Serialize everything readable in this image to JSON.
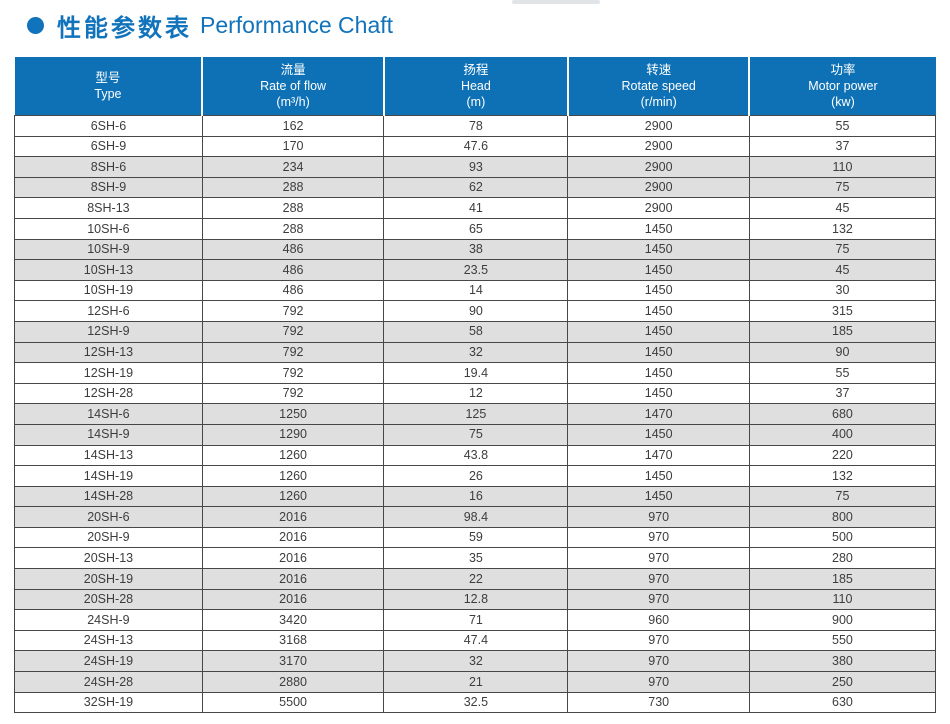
{
  "title": {
    "bullet": "●",
    "cn": "性能参数表",
    "en": "Performance Chaft"
  },
  "colors": {
    "accent_blue": "#1173bb",
    "header_bg": "#0e71b5",
    "header_text": "#ffffff",
    "row_alt_bg": "#dfdfdf",
    "body_text": "#3d3d3d",
    "grid_border": "#474747"
  },
  "table": {
    "columns": [
      {
        "key": "type",
        "cn": "型号",
        "en": "Type",
        "unit": ""
      },
      {
        "key": "flow",
        "cn": "流量",
        "en": "Rate of flow",
        "unit": "(m³/h)"
      },
      {
        "key": "head",
        "cn": "扬程",
        "en": "Head",
        "unit": "(m)"
      },
      {
        "key": "speed",
        "cn": "转速",
        "en": "Rotate speed",
        "unit": "(r/min)"
      },
      {
        "key": "power",
        "cn": "功率",
        "en": "Motor power",
        "unit": "(kw)"
      }
    ],
    "col_widths": [
      "20.4%",
      "19.7%",
      "20.0%",
      "19.7%",
      "20.2%"
    ],
    "rows": [
      [
        "6SH-6",
        "162",
        "78",
        "2900",
        "55"
      ],
      [
        "6SH-9",
        "170",
        "47.6",
        "2900",
        "37"
      ],
      [
        "8SH-6",
        "234",
        "93",
        "2900",
        "110"
      ],
      [
        "8SH-9",
        "288",
        "62",
        "2900",
        "75"
      ],
      [
        "8SH-13",
        "288",
        "41",
        "2900",
        "45"
      ],
      [
        "10SH-6",
        "288",
        "65",
        "1450",
        "132"
      ],
      [
        "10SH-9",
        "486",
        "38",
        "1450",
        "75"
      ],
      [
        "10SH-13",
        "486",
        "23.5",
        "1450",
        "45"
      ],
      [
        "10SH-19",
        "486",
        "14",
        "1450",
        "30"
      ],
      [
        "12SH-6",
        "792",
        "90",
        "1450",
        "315"
      ],
      [
        "12SH-9",
        "792",
        "58",
        "1450",
        "185"
      ],
      [
        "12SH-13",
        "792",
        "32",
        "1450",
        "90"
      ],
      [
        "12SH-19",
        "792",
        "19.4",
        "1450",
        "55"
      ],
      [
        "12SH-28",
        "792",
        "12",
        "1450",
        "37"
      ],
      [
        "14SH-6",
        "1250",
        "125",
        "1470",
        "680"
      ],
      [
        "14SH-9",
        "1290",
        "75",
        "1450",
        "400"
      ],
      [
        "14SH-13",
        "1260",
        "43.8",
        "1470",
        "220"
      ],
      [
        "14SH-19",
        "1260",
        "26",
        "1450",
        "132"
      ],
      [
        "14SH-28",
        "1260",
        "16",
        "1450",
        "75"
      ],
      [
        "20SH-6",
        "2016",
        "98.4",
        "970",
        "800"
      ],
      [
        "20SH-9",
        "2016",
        "59",
        "970",
        "500"
      ],
      [
        "20SH-13",
        "2016",
        "35",
        "970",
        "280"
      ],
      [
        "20SH-19",
        "2016",
        "22",
        "970",
        "185"
      ],
      [
        "20SH-28",
        "2016",
        "12.8",
        "970",
        "110"
      ],
      [
        "24SH-9",
        "3420",
        "71",
        "960",
        "900"
      ],
      [
        "24SH-13",
        "3168",
        "47.4",
        "970",
        "550"
      ],
      [
        "24SH-19",
        "3170",
        "32",
        "970",
        "380"
      ],
      [
        "24SH-28",
        "2880",
        "21",
        "970",
        "250"
      ],
      [
        "32SH-19",
        "5500",
        "32.5",
        "730",
        "630"
      ]
    ]
  }
}
